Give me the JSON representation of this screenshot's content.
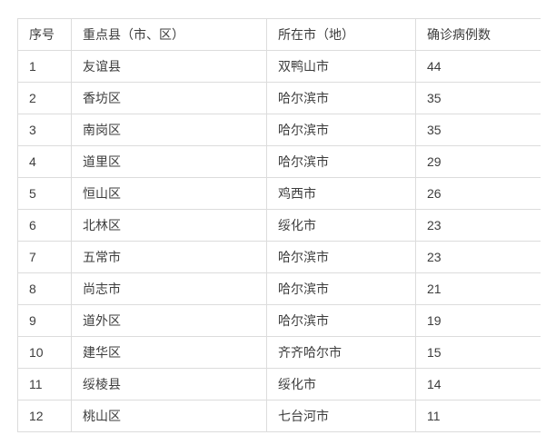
{
  "table": {
    "headers": [
      "序号",
      "重点县（市、区）",
      "所在市（地）",
      "确诊病例数"
    ],
    "rows": [
      [
        "1",
        "友谊县",
        "双鸭山市",
        "44"
      ],
      [
        "2",
        "香坊区",
        "哈尔滨市",
        "35"
      ],
      [
        "3",
        "南岗区",
        "哈尔滨市",
        "35"
      ],
      [
        "4",
        "道里区",
        "哈尔滨市",
        "29"
      ],
      [
        "5",
        "恒山区",
        "鸡西市",
        "26"
      ],
      [
        "6",
        "北林区",
        "绥化市",
        "23"
      ],
      [
        "7",
        "五常市",
        "哈尔滨市",
        "23"
      ],
      [
        "8",
        "尚志市",
        "哈尔滨市",
        "21"
      ],
      [
        "9",
        "道外区",
        "哈尔滨市",
        "19"
      ],
      [
        "10",
        "建华区",
        "齐齐哈尔市",
        "15"
      ],
      [
        "11",
        "绥棱县",
        "绥化市",
        "14"
      ],
      [
        "12",
        "桃山区",
        "七台河市",
        "11"
      ]
    ],
    "colors": {
      "border": "#dcdcdc",
      "text": "#3d3d3d",
      "background": "#ffffff"
    }
  },
  "chart_data": {
    "type": "table",
    "title": "",
    "columns": [
      "序号",
      "重点县（市、区）",
      "所在市（地）",
      "确诊病例数"
    ],
    "categories": [
      "友谊县",
      "香坊区",
      "南岗区",
      "道里区",
      "恒山区",
      "北林区",
      "五常市",
      "尚志市",
      "道外区",
      "建华区",
      "绥棱县",
      "桃山区"
    ],
    "cities": [
      "双鸭山市",
      "哈尔滨市",
      "哈尔滨市",
      "哈尔滨市",
      "鸡西市",
      "绥化市",
      "哈尔滨市",
      "哈尔滨市",
      "哈尔滨市",
      "齐齐哈尔市",
      "绥化市",
      "七台河市"
    ],
    "values": [
      44,
      35,
      35,
      29,
      26,
      23,
      23,
      21,
      19,
      15,
      14,
      11
    ]
  }
}
